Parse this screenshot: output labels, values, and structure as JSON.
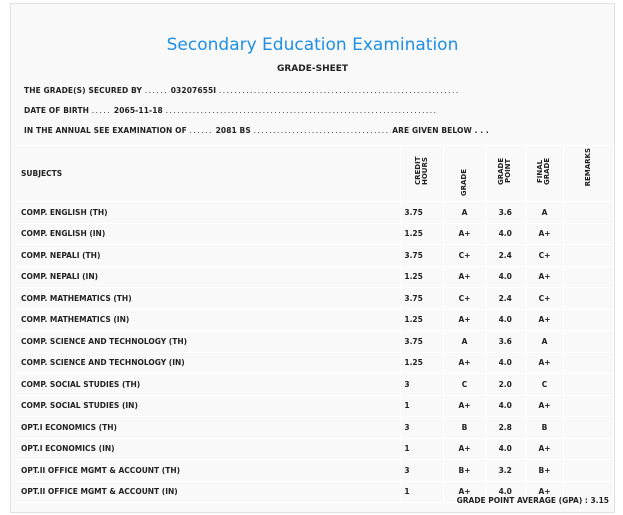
{
  "title": "Secondary Education Examination",
  "subtitle": "GRADE-SHEET",
  "info": {
    "secured_label": "THE GRADE(S) SECURED BY",
    "secured_value": "03207655I",
    "dob_label": "DATE OF BIRTH",
    "dob_value": "2065-11-18",
    "exam_label": "IN THE ANNUAL SEE EXAMINATION OF",
    "exam_value": "2081 BS",
    "exam_suffix": "ARE GIVEN BELOW . . ."
  },
  "headers": {
    "subjects": "SUBJECTS",
    "credit": "CREDIT HOURS",
    "grade": "GRADE",
    "grade_point": "GRADE POINT",
    "final_grade": "FINAL GRADE",
    "remarks": "REMARKS"
  },
  "rows": [
    [
      "COMP. ENGLISH (TH)",
      "3.75",
      "A",
      "3.6",
      "A"
    ],
    [
      "COMP. ENGLISH (IN)",
      "1.25",
      "A+",
      "4.0",
      "A+"
    ],
    [
      "COMP. NEPALI (TH)",
      "3.75",
      "C+",
      "2.4",
      "C+"
    ],
    [
      "COMP. NEPALI (IN)",
      "1.25",
      "A+",
      "4.0",
      "A+"
    ],
    [
      "COMP. MATHEMATICS (TH)",
      "3.75",
      "C+",
      "2.4",
      "C+"
    ],
    [
      "COMP. MATHEMATICS (IN)",
      "1.25",
      "A+",
      "4.0",
      "A+"
    ],
    [
      "COMP. SCIENCE AND TECHNOLOGY (TH)",
      "3.75",
      "A",
      "3.6",
      "A"
    ],
    [
      "COMP. SCIENCE AND TECHNOLOGY (IN)",
      "1.25",
      "A+",
      "4.0",
      "A+"
    ],
    [
      "COMP. SOCIAL STUDIES (TH)",
      "3",
      "C",
      "2.0",
      "C"
    ],
    [
      "COMP. SOCIAL STUDIES (IN)",
      "1",
      "A+",
      "4.0",
      "A+"
    ],
    [
      "OPT.I ECONOMICS (TH)",
      "3",
      "B",
      "2.8",
      "B"
    ],
    [
      "OPT.I ECONOMICS (IN)",
      "1",
      "A+",
      "4.0",
      "A+"
    ],
    [
      "OPT.II OFFICE MGMT & ACCOUNT (TH)",
      "3",
      "B+",
      "3.2",
      "B+"
    ],
    [
      "OPT.II OFFICE MGMT & ACCOUNT (IN)",
      "1",
      "A+",
      "4.0",
      "A+"
    ]
  ],
  "gpa": "GRADE POINT AVERAGE (GPA) : 3.15"
}
